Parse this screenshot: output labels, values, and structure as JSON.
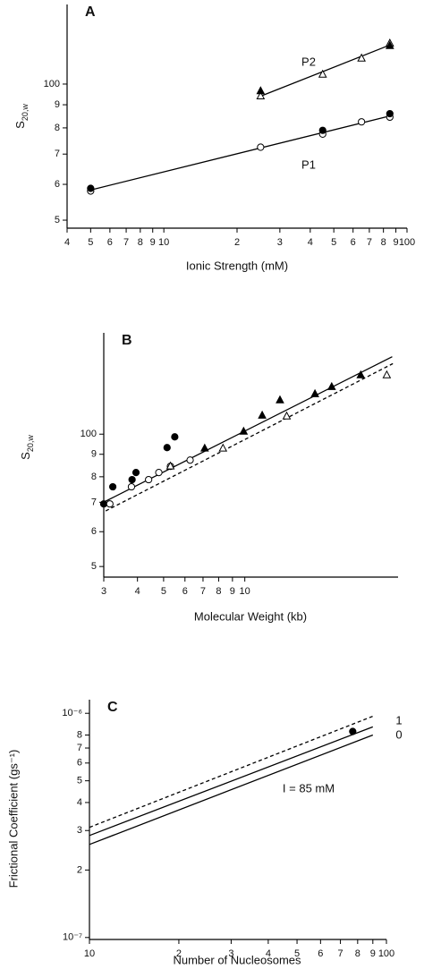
{
  "chart_data": [
    {
      "type": "scatter",
      "panel": "A",
      "xlog": true,
      "ylog": true,
      "xlabel": "Ionic Strength (mM)",
      "ylabel": {
        "base": "S",
        "sub": "20,w"
      },
      "xlim": [
        4,
        100
      ],
      "ylim": [
        48,
        150
      ],
      "xticks": [
        4,
        5,
        6,
        7,
        8,
        9,
        10,
        {
          "value": 20,
          "label": "2"
        },
        {
          "value": 30,
          "label": "3"
        },
        {
          "value": 40,
          "label": "4"
        },
        {
          "value": 50,
          "label": "5"
        },
        {
          "value": 60,
          "label": "6"
        },
        {
          "value": 70,
          "label": "7"
        },
        {
          "value": 80,
          "label": "8"
        },
        {
          "value": 90,
          "label": "9"
        },
        100
      ],
      "yticks": [
        {
          "value": 50,
          "label": "5"
        },
        {
          "value": 60,
          "label": "6"
        },
        {
          "value": 70,
          "label": "7"
        },
        {
          "value": 80,
          "label": "8"
        },
        {
          "value": 90,
          "label": "9"
        },
        100
      ],
      "series": [
        {
          "marker": "circle-open",
          "x": [
            5,
            25,
            45,
            65,
            85
          ],
          "values": [
            58,
            72.5,
            77.5,
            82.5,
            84.5
          ]
        },
        {
          "marker": "circle-filled",
          "x": [
            5,
            45,
            85
          ],
          "values": [
            58.8,
            79,
            86
          ]
        },
        {
          "marker": "triangle-open",
          "x": [
            25,
            45,
            65,
            85
          ],
          "values": [
            94,
            105,
            114,
            123
          ]
        },
        {
          "marker": "triangle-filled",
          "x": [
            25,
            85
          ],
          "values": [
            96.5,
            121.5
          ]
        }
      ],
      "lines": [
        {
          "name": "P2",
          "style": "solid",
          "x": [
            25,
            85
          ],
          "values": [
            94,
            122
          ]
        },
        {
          "name": "P1",
          "style": "solid",
          "x": [
            5,
            85
          ],
          "values": [
            58.3,
            85
          ]
        }
      ]
    },
    {
      "type": "scatter",
      "panel": "B",
      "xlog": true,
      "ylog": true,
      "xlabel": "Molecular Weight (kb)",
      "ylabel": {
        "base": "S",
        "sub": "20,w"
      },
      "xlim": [
        3,
        37
      ],
      "ylim": [
        47.3,
        170
      ],
      "xticks": [
        3,
        4,
        5,
        6,
        7,
        8,
        9,
        10
      ],
      "yticks": [
        {
          "value": 50,
          "label": "5"
        },
        {
          "value": 60,
          "label": "6"
        },
        {
          "value": 70,
          "label": "7"
        },
        {
          "value": 80,
          "label": "8"
        },
        {
          "value": 90,
          "label": "9"
        },
        100
      ],
      "series": [
        {
          "marker": "circle-filled",
          "x": [
            3.0,
            3.24,
            3.82,
            3.95,
            5.15,
            5.5
          ],
          "values": [
            69.4,
            75.9,
            78.8,
            81.8,
            93.2,
            98.6
          ]
        },
        {
          "marker": "circle-open",
          "x": [
            3.16,
            3.8,
            4.4,
            4.8,
            5.3,
            6.27
          ],
          "values": [
            69.4,
            75.9,
            78.8,
            81.8,
            84.5,
            87.3
          ]
        },
        {
          "marker": "triangle-open",
          "x": [
            5.3,
            8.3,
            14.3,
            33.6
          ],
          "values": [
            84.5,
            92.8,
            109.8,
            136.2
          ]
        },
        {
          "marker": "triangle-filled",
          "x": [
            7.1,
            9.9,
            11.6,
            13.5,
            18.2,
            21,
            26.9
          ],
          "values": [
            92.8,
            101.4,
            110.3,
            119.5,
            123.4,
            128.1,
            136.2
          ]
        }
      ],
      "lines": [
        {
          "style": "solid",
          "x": [
            3.05,
            35.2
          ],
          "values": [
            70.4,
            150
          ]
        },
        {
          "style": "dashed",
          "x": [
            3.05,
            35.4
          ],
          "values": [
            66.9,
            144.7
          ]
        }
      ]
    },
    {
      "type": "scatter",
      "panel": "C",
      "xlog": true,
      "ylog": true,
      "xlabel": "Number of Nucleosomes",
      "ylabel": "Frictional Coefficient (gs⁻¹)",
      "annotation": "I = 85 mM",
      "xlim": [
        10,
        100
      ],
      "ylim": [
        9.8e-08,
        1.15e-06
      ],
      "xticks": [
        10,
        {
          "value": 20,
          "label": "2"
        },
        {
          "value": 30,
          "label": "3"
        },
        {
          "value": 40,
          "label": "4"
        },
        {
          "value": 50,
          "label": "5"
        },
        {
          "value": 60,
          "label": "6"
        },
        {
          "value": 70,
          "label": "7"
        },
        {
          "value": 80,
          "label": "8"
        },
        {
          "value": 90,
          "label": "9"
        },
        100
      ],
      "yticks": [
        {
          "value": 1e-07,
          "label": "10⁻⁷"
        },
        {
          "value": 2e-07,
          "label": "2"
        },
        {
          "value": 3e-07,
          "label": "3"
        },
        {
          "value": 4e-07,
          "label": "4"
        },
        {
          "value": 5e-07,
          "label": "5"
        },
        {
          "value": 6e-07,
          "label": "6"
        },
        {
          "value": 7e-07,
          "label": "7"
        },
        {
          "value": 8e-07,
          "label": "8"
        },
        {
          "value": 1e-06,
          "label": "10⁻⁶"
        }
      ],
      "series": [
        {
          "marker": "circle-filled",
          "x": [
            77
          ],
          "values": [
            8.3e-07
          ]
        }
      ],
      "lines": [
        {
          "style": "dashed",
          "x": [
            10,
            90
          ],
          "values": [
            3.1e-07,
            9.7e-07
          ]
        },
        {
          "name": "1",
          "style": "solid",
          "x": [
            10,
            90
          ],
          "values": [
            2.85e-07,
            8.7e-07
          ]
        },
        {
          "name": "0",
          "style": "solid",
          "x": [
            10,
            90
          ],
          "values": [
            2.6e-07,
            8e-07
          ]
        }
      ]
    }
  ]
}
